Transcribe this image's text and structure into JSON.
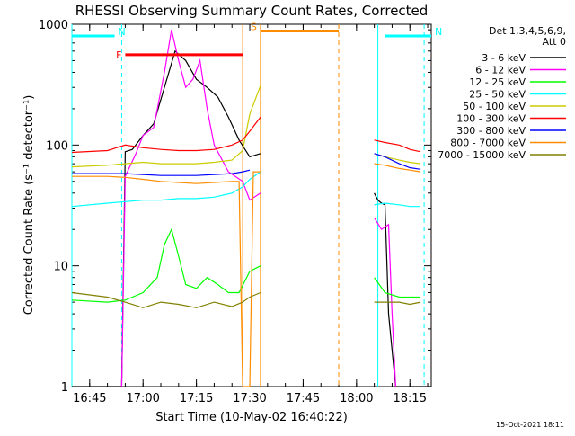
{
  "chart_data": {
    "type": "line",
    "title": "RHESSI Observing Summary Count Rates, Corrected",
    "xlabel": "Start Time (10-May-02 16:40:22)",
    "ylabel": "Corrected Count Rate (s⁻¹ detector⁻¹)",
    "y_scale": "log",
    "ylim": [
      1,
      1000
    ],
    "y_ticks": [
      {
        "value": 1,
        "label": "1"
      },
      {
        "value": 10,
        "label": "10"
      },
      {
        "value": 100,
        "label": "100"
      },
      {
        "value": 1000,
        "label": "1000"
      }
    ],
    "xlim": [
      "16:40",
      "18:21"
    ],
    "x_ticks": [
      "16:45",
      "17:00",
      "17:15",
      "17:30",
      "17:45",
      "18:00",
      "18:15"
    ],
    "legend_header": [
      "Det 1,3,4,5,6,9,",
      "Att 0"
    ],
    "legend_position": "right, outside plot",
    "footer_date": "15-Oct-2021 18:11",
    "series": [
      {
        "name": "3 - 6 keV",
        "color": "#000000",
        "points": [
          [
            "16:40",
            1
          ],
          [
            "16:50",
            1
          ],
          [
            "16:54",
            1
          ],
          [
            "16:55",
            88
          ],
          [
            "16:57",
            92
          ],
          [
            "17:00",
            120
          ],
          [
            "17:03",
            150
          ],
          [
            "17:06",
            300
          ],
          [
            "17:09",
            600
          ],
          [
            "17:12",
            500
          ],
          [
            "17:15",
            350
          ],
          [
            "17:18",
            300
          ],
          [
            "17:21",
            250
          ],
          [
            "17:24",
            170
          ],
          [
            "17:27",
            110
          ],
          [
            "17:30",
            80
          ],
          [
            "17:33",
            85
          ]
        ],
        "segment2": [
          [
            "18:05",
            40
          ],
          [
            "18:06",
            35
          ],
          [
            "18:07",
            33
          ],
          [
            "18:08",
            32
          ],
          [
            "18:09",
            4
          ],
          [
            "18:10",
            2
          ],
          [
            "18:11",
            1
          ],
          [
            "18:21",
            1
          ]
        ]
      },
      {
        "name": "6 - 12 keV",
        "color": "#ff00ff",
        "points": [
          [
            "16:54",
            1
          ],
          [
            "16:55",
            55
          ],
          [
            "16:58",
            85
          ],
          [
            "17:00",
            120
          ],
          [
            "17:03",
            140
          ],
          [
            "17:06",
            400
          ],
          [
            "17:08",
            900
          ],
          [
            "17:10",
            500
          ],
          [
            "17:12",
            300
          ],
          [
            "17:14",
            350
          ],
          [
            "17:16",
            500
          ],
          [
            "17:18",
            200
          ],
          [
            "17:20",
            100
          ],
          [
            "17:24",
            60
          ],
          [
            "17:28",
            50
          ],
          [
            "17:30",
            35
          ],
          [
            "17:33",
            40
          ]
        ],
        "segment2": [
          [
            "18:05",
            25
          ],
          [
            "18:07",
            20
          ],
          [
            "18:09",
            22
          ],
          [
            "18:10",
            4
          ],
          [
            "18:11",
            1
          ]
        ]
      },
      {
        "name": "12 - 25 keV",
        "color": "#00ff00",
        "points": [
          [
            "16:40",
            5.2
          ],
          [
            "16:50",
            5.0
          ],
          [
            "16:55",
            5.2
          ],
          [
            "17:00",
            6
          ],
          [
            "17:04",
            8
          ],
          [
            "17:06",
            15
          ],
          [
            "17:08",
            20
          ],
          [
            "17:10",
            12
          ],
          [
            "17:12",
            7
          ],
          [
            "17:15",
            6.5
          ],
          [
            "17:18",
            8
          ],
          [
            "17:21",
            7
          ],
          [
            "17:24",
            6
          ],
          [
            "17:27",
            6
          ],
          [
            "17:30",
            9
          ],
          [
            "17:33",
            10
          ]
        ],
        "segment2": [
          [
            "18:05",
            8
          ],
          [
            "18:08",
            6
          ],
          [
            "18:12",
            5.5
          ],
          [
            "18:15",
            5.5
          ],
          [
            "18:18",
            5.5
          ]
        ]
      },
      {
        "name": "25 - 50 keV",
        "color": "#00ffff",
        "points": [
          [
            "16:40",
            31
          ],
          [
            "16:50",
            33
          ],
          [
            "16:55",
            34
          ],
          [
            "17:00",
            35
          ],
          [
            "17:05",
            35
          ],
          [
            "17:10",
            36
          ],
          [
            "17:15",
            36
          ],
          [
            "17:20",
            37
          ],
          [
            "17:25",
            40
          ],
          [
            "17:28",
            45
          ],
          [
            "17:30",
            52
          ],
          [
            "17:33",
            60
          ]
        ],
        "segment2": [
          [
            "18:05",
            32
          ],
          [
            "18:08",
            33
          ],
          [
            "18:12",
            32
          ],
          [
            "18:15",
            31
          ],
          [
            "18:18",
            31
          ]
        ]
      },
      {
        "name": "50 - 100 keV",
        "color": "#cccc00",
        "points": [
          [
            "16:40",
            66
          ],
          [
            "16:50",
            68
          ],
          [
            "16:55",
            70
          ],
          [
            "17:00",
            72
          ],
          [
            "17:05",
            70
          ],
          [
            "17:10",
            70
          ],
          [
            "17:15",
            70
          ],
          [
            "17:20",
            72
          ],
          [
            "17:25",
            75
          ],
          [
            "17:28",
            90
          ],
          [
            "17:30",
            180
          ],
          [
            "17:33",
            310
          ]
        ],
        "segment2": [
          [
            "18:05",
            85
          ],
          [
            "18:08",
            80
          ],
          [
            "18:12",
            75
          ],
          [
            "18:15",
            72
          ],
          [
            "18:18",
            70
          ]
        ]
      },
      {
        "name": "100 - 300 keV",
        "color": "#ff0000",
        "points": [
          [
            "16:40",
            87
          ],
          [
            "16:50",
            90
          ],
          [
            "16:55",
            100
          ],
          [
            "17:00",
            95
          ],
          [
            "17:05",
            92
          ],
          [
            "17:10",
            90
          ],
          [
            "17:15",
            90
          ],
          [
            "17:20",
            92
          ],
          [
            "17:25",
            100
          ],
          [
            "17:28",
            110
          ],
          [
            "17:30",
            130
          ],
          [
            "17:33",
            170
          ]
        ],
        "segment2": [
          [
            "18:05",
            110
          ],
          [
            "18:08",
            105
          ],
          [
            "18:12",
            100
          ],
          [
            "18:15",
            92
          ],
          [
            "18:18",
            88
          ]
        ]
      },
      {
        "name": "300 - 800 keV",
        "color": "#0000ff",
        "points": [
          [
            "16:40",
            58
          ],
          [
            "16:50",
            58
          ],
          [
            "16:55",
            58
          ],
          [
            "17:00",
            57
          ],
          [
            "17:05",
            56
          ],
          [
            "17:10",
            56
          ],
          [
            "17:15",
            56
          ],
          [
            "17:20",
            57
          ],
          [
            "17:25",
            58
          ],
          [
            "17:28",
            60
          ],
          [
            "17:30",
            62
          ]
        ],
        "segment2": [
          [
            "18:05",
            85
          ],
          [
            "18:08",
            80
          ],
          [
            "18:12",
            70
          ],
          [
            "18:15",
            65
          ],
          [
            "18:18",
            63
          ]
        ]
      },
      {
        "name": "800 - 7000 keV",
        "color": "#ff8c00",
        "points": [
          [
            "16:40",
            55
          ],
          [
            "16:50",
            55
          ],
          [
            "16:55",
            54
          ],
          [
            "17:00",
            52
          ],
          [
            "17:05",
            50
          ],
          [
            "17:10",
            49
          ],
          [
            "17:15",
            48
          ],
          [
            "17:20",
            49
          ],
          [
            "17:25",
            50
          ],
          [
            "17:27",
            50
          ],
          [
            "17:28",
            1
          ],
          [
            "17:30",
            1
          ],
          [
            "17:31",
            60
          ],
          [
            "17:33",
            60
          ]
        ],
        "segment2": [
          [
            "18:05",
            70
          ],
          [
            "18:08",
            68
          ],
          [
            "18:12",
            64
          ],
          [
            "18:15",
            62
          ],
          [
            "18:18",
            60
          ]
        ]
      },
      {
        "name": "7000 - 15000 keV",
        "color": "#808000",
        "points": [
          [
            "16:40",
            6
          ],
          [
            "16:50",
            5.5
          ],
          [
            "16:55",
            5
          ],
          [
            "17:00",
            4.5
          ],
          [
            "17:05",
            5
          ],
          [
            "17:10",
            4.8
          ],
          [
            "17:15",
            4.5
          ],
          [
            "17:20",
            5
          ],
          [
            "17:25",
            4.6
          ],
          [
            "17:28",
            5
          ],
          [
            "17:30",
            5.5
          ],
          [
            "17:33",
            6
          ]
        ],
        "segment2": [
          [
            "18:05",
            5
          ],
          [
            "18:08",
            5
          ],
          [
            "18:12",
            5
          ],
          [
            "18:15",
            4.8
          ],
          [
            "18:18",
            5
          ]
        ]
      }
    ],
    "annotation_bars": [
      {
        "label": "N",
        "color": "#00ffff",
        "style": "solid",
        "value": 800,
        "from": "16:40",
        "to": "16:52"
      },
      {
        "label": "N",
        "color": "#00ffff",
        "style": "solid",
        "value": 800,
        "from": "18:08",
        "to": "18:21"
      },
      {
        "label": "F",
        "color": "#ff0000",
        "style": "solid",
        "value": 560,
        "from": "16:55",
        "to": "17:28"
      },
      {
        "label": "S",
        "color": "#ff8c00",
        "style": "solid",
        "value": 880,
        "from": "17:33",
        "to": "17:55"
      }
    ],
    "vertical_markers": [
      {
        "time": "16:40",
        "color": "#00ffff",
        "style": "solid"
      },
      {
        "time": "16:54",
        "color": "#00ffff",
        "style": "dashed"
      },
      {
        "time": "17:28",
        "color": "#ff8c00",
        "style": "solid"
      },
      {
        "time": "17:33",
        "color": "#ff8c00",
        "style": "solid"
      },
      {
        "time": "17:55",
        "color": "#ff8c00",
        "style": "dashed"
      },
      {
        "time": "18:06",
        "color": "#00ffff",
        "style": "solid"
      },
      {
        "time": "18:19",
        "color": "#00ffff",
        "style": "dashed"
      }
    ]
  }
}
